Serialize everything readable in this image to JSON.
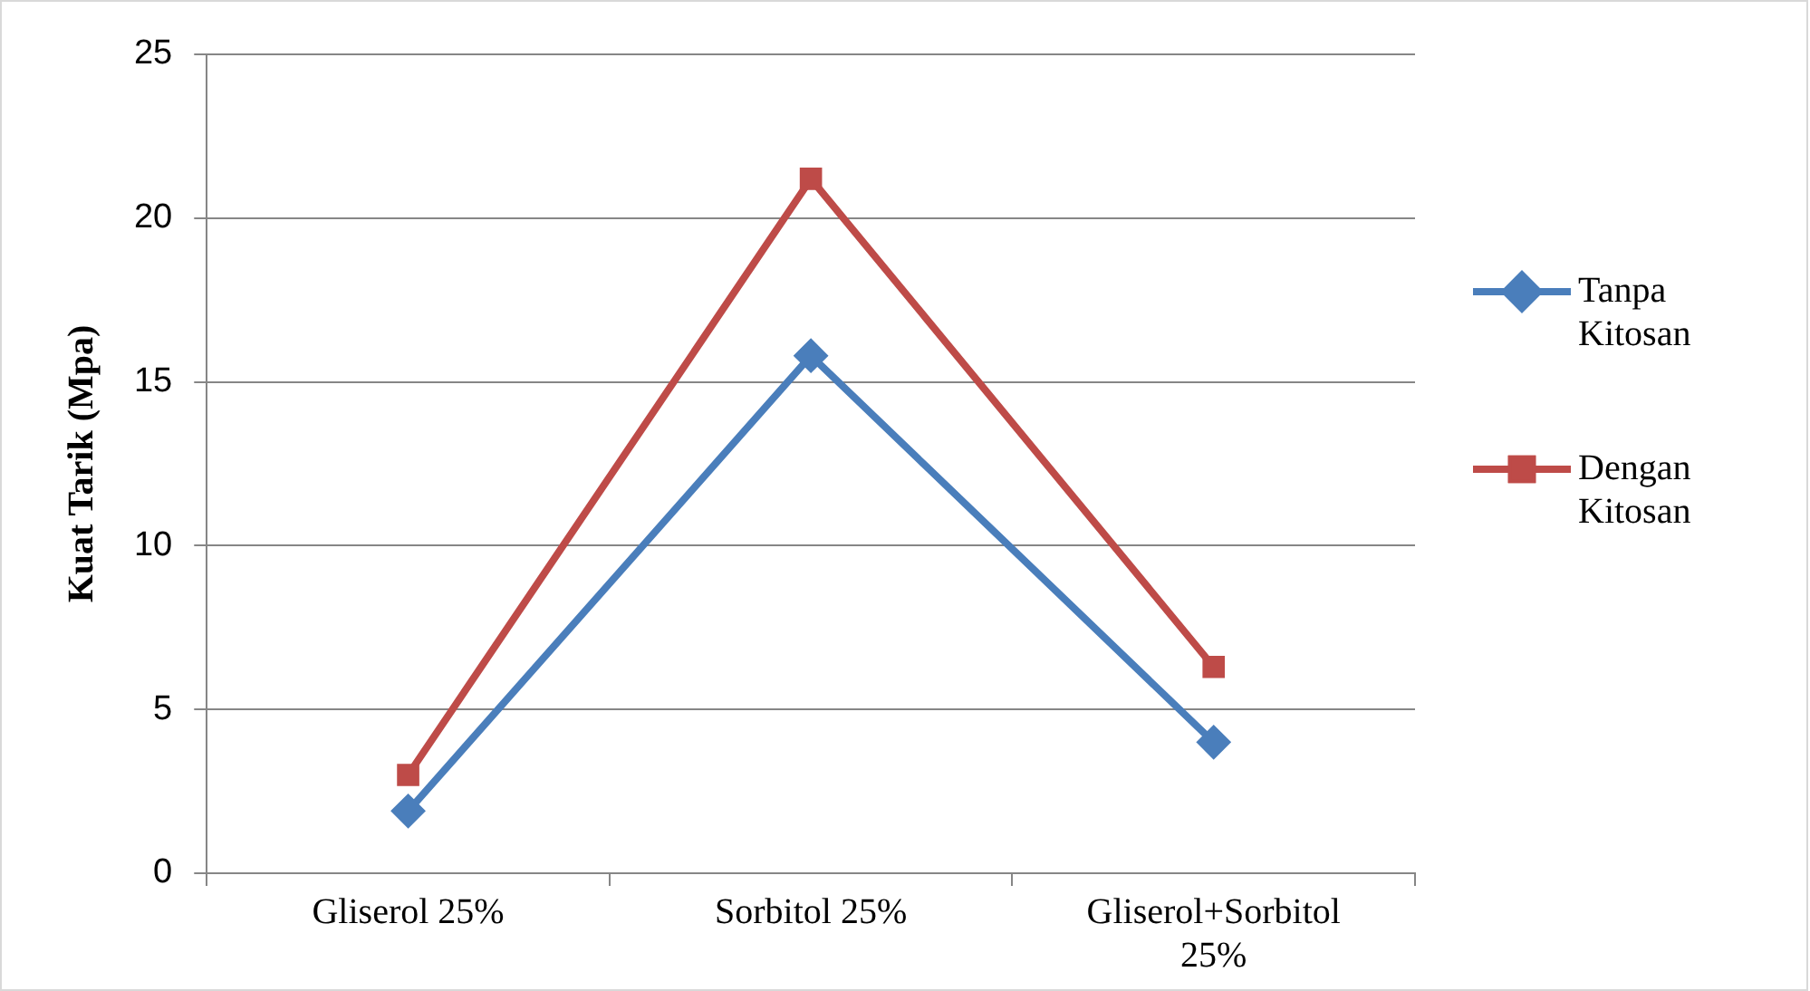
{
  "chart_data": {
    "type": "line",
    "ylabel": "Kuat Tarik (Mpa)",
    "categories": [
      "Gliserol 25%",
      "Sorbitol 25%",
      "Gliserol+Sorbitol 25%"
    ],
    "series": [
      {
        "name": "Tanpa Kitosan",
        "color": "#4a7ebb",
        "values": [
          1.9,
          15.8,
          4.0
        ],
        "marker": "diamond"
      },
      {
        "name": "Dengan Kitosan",
        "color": "#be4b48",
        "values": [
          3.0,
          21.2,
          6.3
        ],
        "marker": "square"
      }
    ],
    "ylim": [
      0,
      25
    ],
    "yticks": [
      0,
      5,
      10,
      15,
      20,
      25
    ],
    "grid": "y",
    "legend": "right",
    "line_style": "solid"
  }
}
